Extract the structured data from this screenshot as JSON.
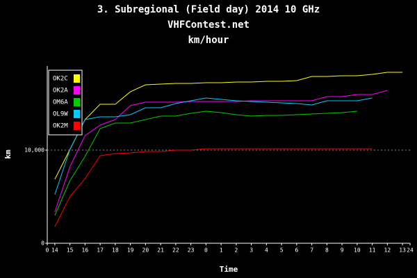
{
  "chart_data": {
    "type": "line",
    "title": "3. Subregional (Field day) 2014 10 GHz",
    "subtitle": "VHFContest.net",
    "subtitle2": "km/hour",
    "x_label": "Time",
    "y_label": "km",
    "x": [
      0.5,
      1.5,
      2.5,
      3.5,
      4.5,
      5.5,
      6.5,
      7.5,
      8.5,
      9.5,
      10.5,
      11.5,
      12.5,
      13.5,
      14.5,
      15.5,
      16.5,
      17.5,
      18.5,
      19.5,
      20.5,
      21.5,
      22.5,
      23.5
    ],
    "xlim": [
      0,
      24
    ],
    "xticks": [
      0,
      {
        "value": 0.5,
        "label": "14"
      },
      {
        "value": 1.5,
        "label": "15"
      },
      {
        "value": 2.5,
        "label": "16"
      },
      {
        "value": 3.5,
        "label": "17"
      },
      {
        "value": 4.5,
        "label": "18"
      },
      {
        "value": 5.5,
        "label": "19"
      },
      {
        "value": 6.5,
        "label": "20"
      },
      {
        "value": 7.5,
        "label": "21"
      },
      {
        "value": 8.5,
        "label": "22"
      },
      {
        "value": 9.5,
        "label": "23"
      },
      {
        "value": 10.5,
        "label": "0"
      },
      {
        "value": 11.5,
        "label": "1"
      },
      {
        "value": 12.5,
        "label": "2"
      },
      {
        "value": 13.5,
        "label": "3"
      },
      {
        "value": 14.5,
        "label": "4"
      },
      {
        "value": 15.5,
        "label": "5"
      },
      {
        "value": 16.5,
        "label": "6"
      },
      {
        "value": 17.5,
        "label": "7"
      },
      {
        "value": 18.5,
        "label": "8"
      },
      {
        "value": 19.5,
        "label": "9"
      },
      {
        "value": 20.5,
        "label": "10"
      },
      {
        "value": 21.5,
        "label": "11"
      },
      {
        "value": 22.5,
        "label": "12"
      },
      {
        "value": 23.5,
        "label": "13"
      },
      24
    ],
    "ylim": [
      0,
      19000
    ],
    "yticks": [
      0,
      {
        "value": 10000,
        "label": "10,000"
      }
    ],
    "grid": true,
    "legend": "upper left",
    "series": [
      {
        "name": "OK2C",
        "color": "#ffff00",
        "values": [
          6870,
          10075,
          13280,
          14925,
          14925,
          16270,
          17015,
          17090,
          17164,
          17164,
          17239,
          17239,
          17313,
          17313,
          17388,
          17388,
          17463,
          17910,
          17910,
          17985,
          17985,
          18134,
          18358,
          18358
        ]
      },
      {
        "name": "OK2A",
        "color": "#ff00ff",
        "values": [
          3358,
          8209,
          11567,
          12687,
          13284,
          14776,
          15149,
          15149,
          15149,
          15224,
          15224,
          15224,
          15224,
          15299,
          15299,
          15299,
          15299,
          15299,
          15746,
          15746,
          15970,
          15970,
          16418,
          null
        ]
      },
      {
        "name": "OM6A",
        "color": "#00cc00",
        "values": [
          2985,
          6716,
          9328,
          12313,
          12910,
          12910,
          13284,
          13657,
          13657,
          13955,
          14179,
          14030,
          13806,
          13657,
          13731,
          13731,
          13806,
          13881,
          13955,
          14030,
          14179,
          null,
          null,
          null
        ]
      },
      {
        "name": "OL9W",
        "color": "#00ccff",
        "values": [
          5224,
          10075,
          13284,
          13582,
          13582,
          13806,
          14552,
          14552,
          15000,
          15299,
          15597,
          15448,
          15299,
          15224,
          15149,
          15075,
          15000,
          14851,
          15299,
          15299,
          15299,
          15597,
          null,
          null
        ]
      },
      {
        "name": "OK2M",
        "color": "#ff0000",
        "values": [
          1791,
          5000,
          6940,
          9403,
          9627,
          9701,
          9851,
          9851,
          10000,
          10000,
          10149,
          10149,
          10149,
          10149,
          10149,
          10149,
          10149,
          10149,
          10149,
          10149,
          10149,
          10149,
          null,
          null
        ]
      }
    ]
  }
}
